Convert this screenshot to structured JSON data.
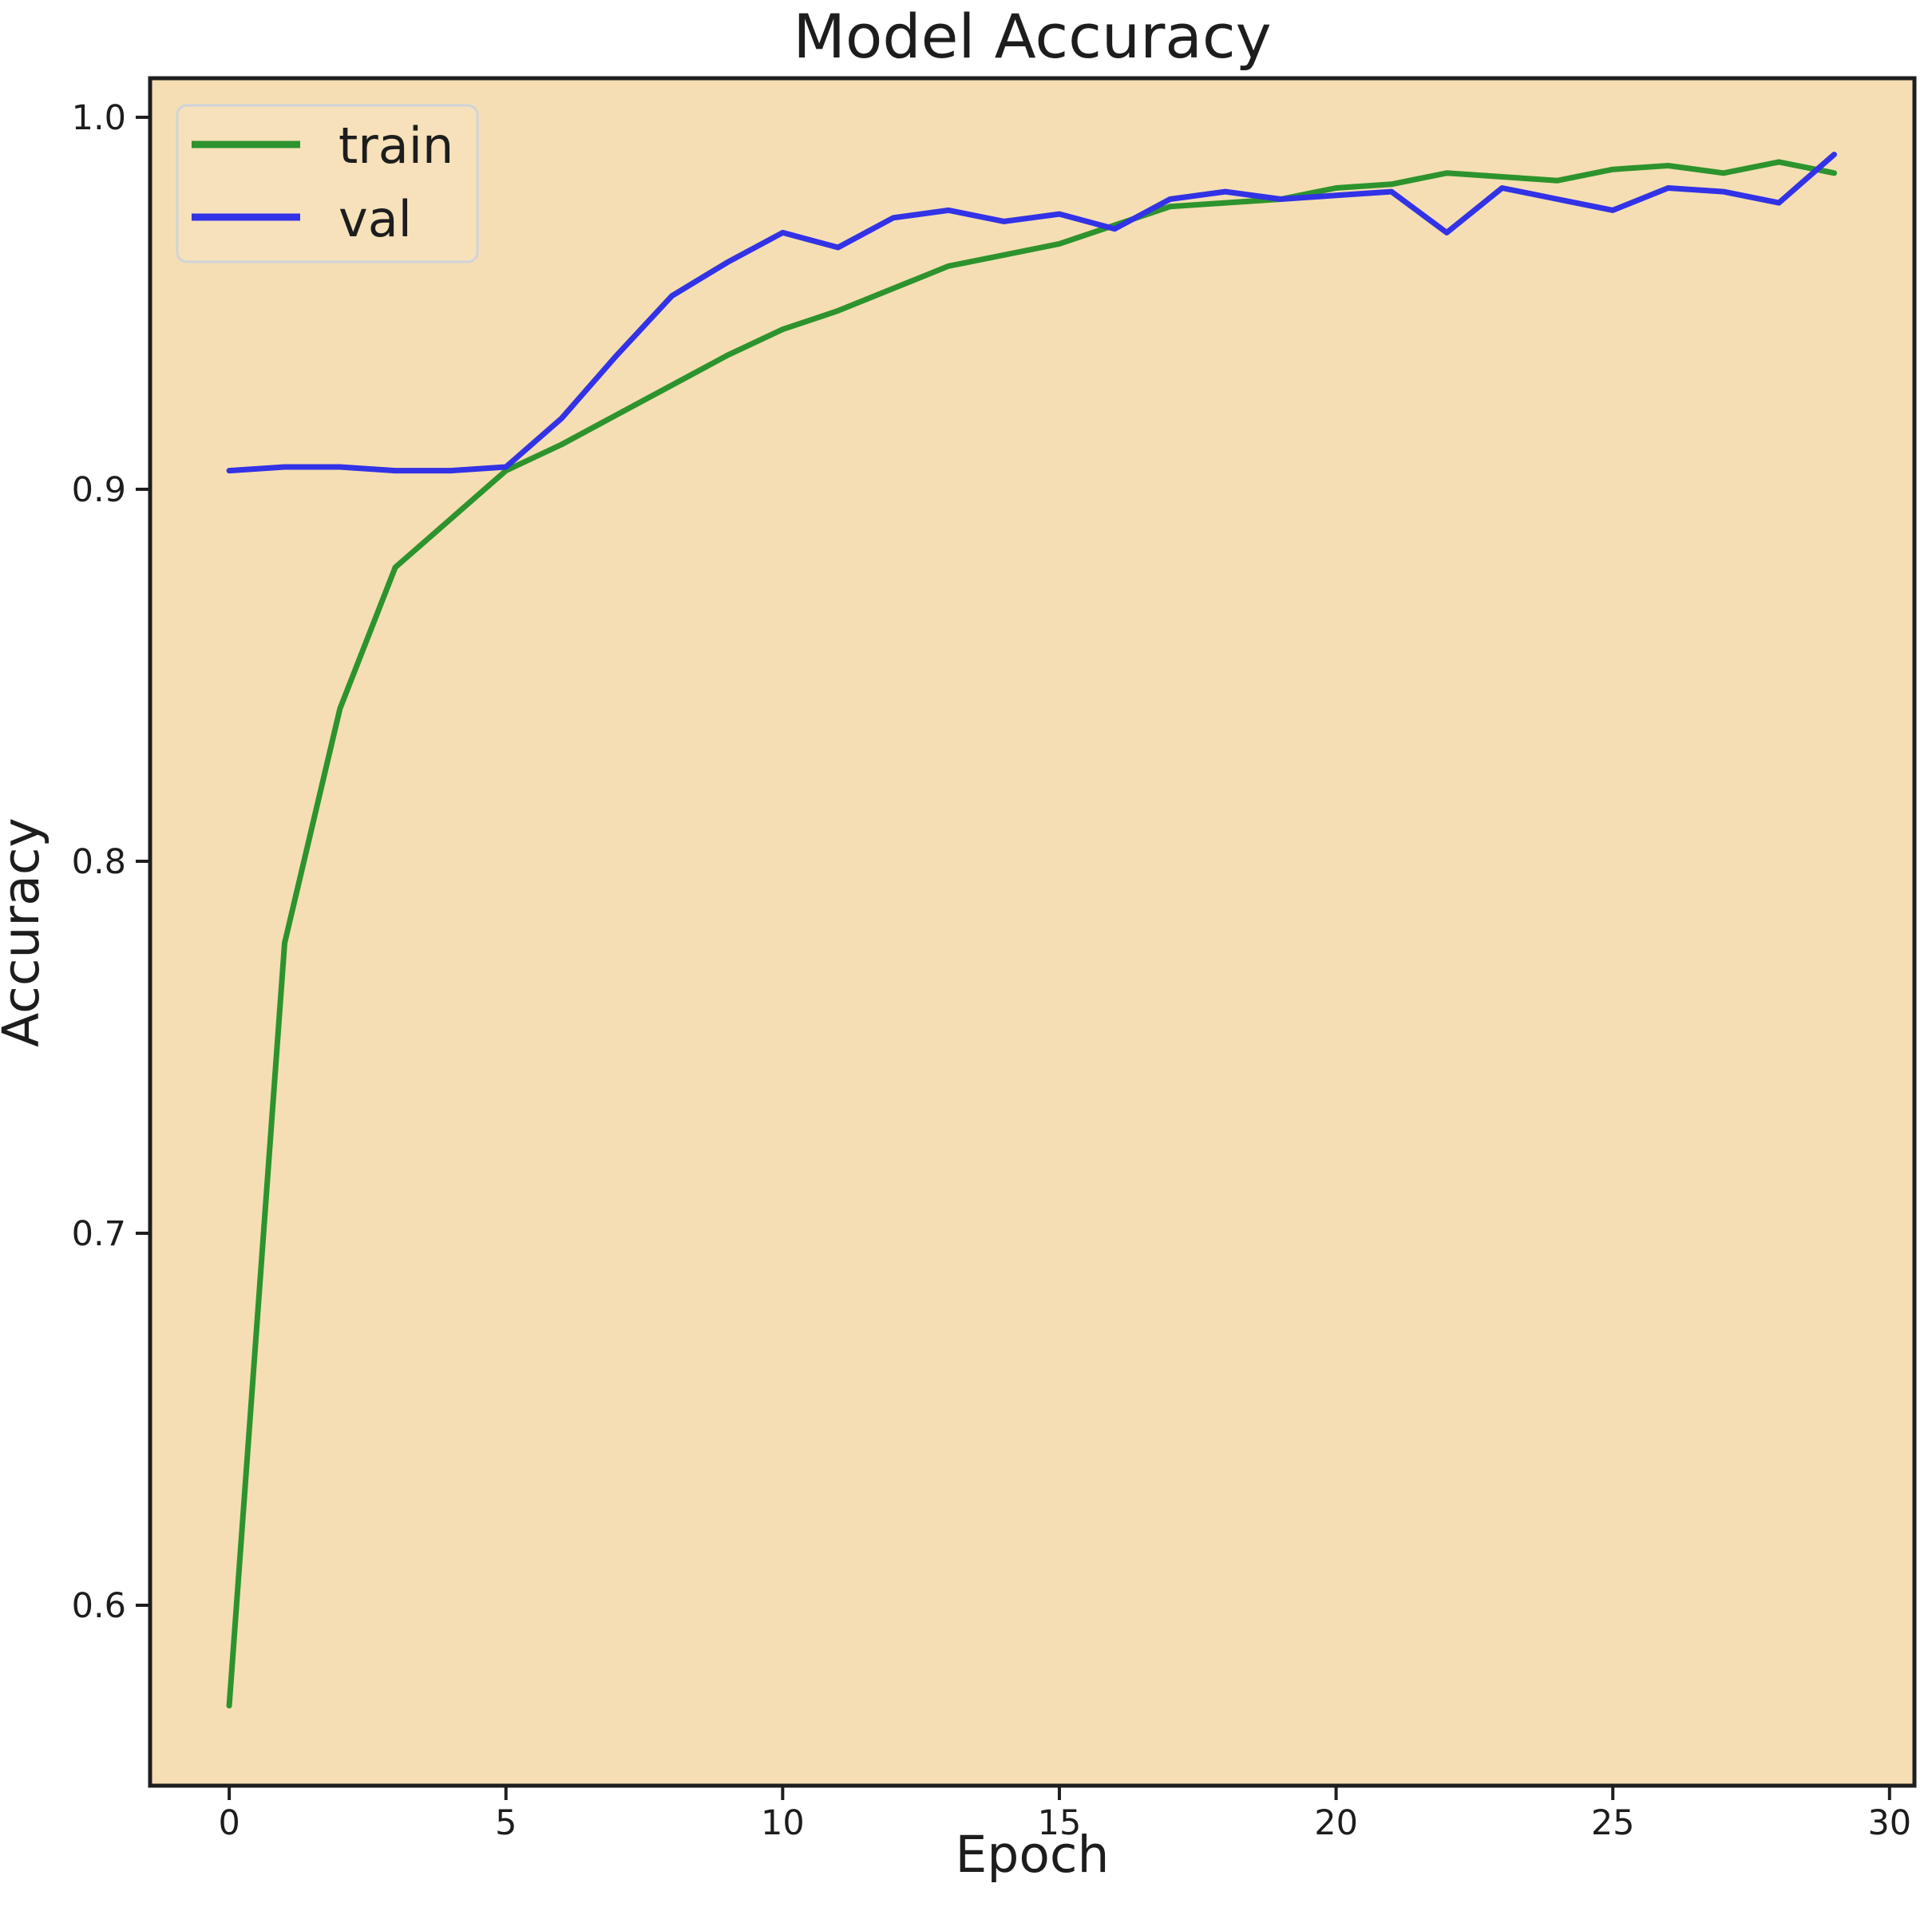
{
  "chart_data": {
    "type": "line",
    "title": "Model Accuracy",
    "xlabel": "Epoch",
    "ylabel": "Accuracy",
    "x": [
      0,
      1,
      2,
      3,
      4,
      5,
      6,
      7,
      8,
      9,
      10,
      11,
      12,
      13,
      14,
      15,
      16,
      17,
      18,
      19,
      20,
      21,
      22,
      23,
      24,
      25,
      26,
      27,
      28,
      29
    ],
    "series": [
      {
        "name": "train",
        "color": "#2d932d",
        "values": [
          0.573,
          0.778,
          0.841,
          0.879,
          0.892,
          0.905,
          0.912,
          0.92,
          0.928,
          0.936,
          0.943,
          0.948,
          0.954,
          0.96,
          0.963,
          0.966,
          0.971,
          0.976,
          0.977,
          0.978,
          0.981,
          0.982,
          0.985,
          0.984,
          0.983,
          0.986,
          0.987,
          0.985,
          0.988,
          0.985
        ]
      },
      {
        "name": "val",
        "color": "#3232e6",
        "values": [
          0.905,
          0.906,
          0.906,
          0.905,
          0.905,
          0.906,
          0.919,
          0.936,
          0.952,
          0.961,
          0.969,
          0.965,
          0.973,
          0.975,
          0.972,
          0.974,
          0.97,
          0.978,
          0.98,
          0.978,
          0.979,
          0.98,
          0.969,
          0.981,
          0.978,
          0.975,
          0.981,
          0.98,
          0.977,
          0.99
        ]
      }
    ],
    "xticks": [
      0,
      5,
      10,
      15,
      20,
      25,
      30
    ],
    "yticks": [
      0.6,
      0.7,
      0.8,
      0.9,
      1.0
    ],
    "xlim": [
      -1.43,
      30.45
    ],
    "ylim": [
      0.5515,
      1.0105
    ],
    "grid": false,
    "legend_position": "upper left",
    "plot_background": "#f5deb3",
    "figure_background": "#ffffff",
    "axis_color": "#1e1e1e"
  }
}
